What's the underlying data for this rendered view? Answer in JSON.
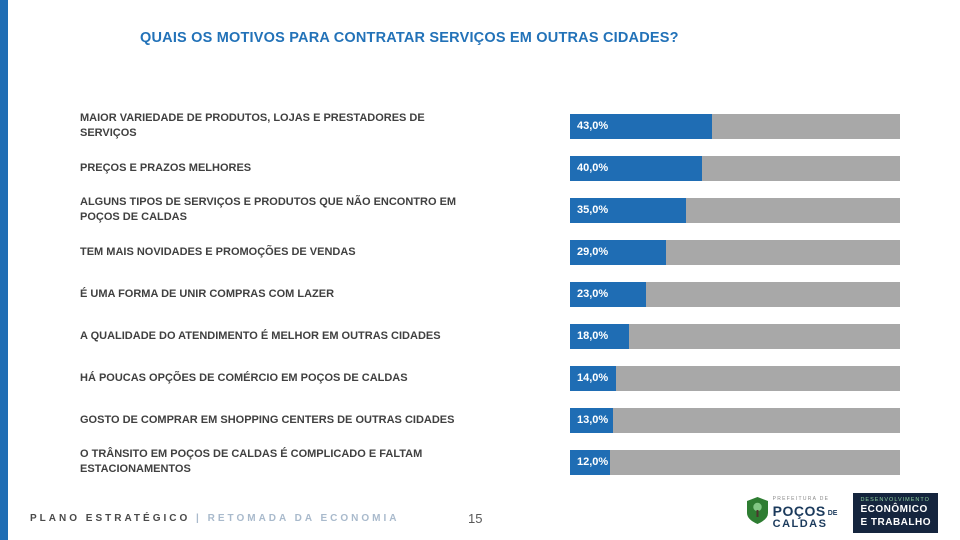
{
  "title": "QUAIS OS MOTIVOS PARA CONTRATAR SERVIÇOS EM OUTRAS CIDADES?",
  "colors": {
    "accent_blue": "#1F6DB4",
    "title_blue": "#2272B8",
    "bar_fill": "#1F6DB4",
    "bar_track_gray": "#A8A8A8",
    "label_gray": "#404040"
  },
  "chart_data": {
    "type": "bar",
    "orientation": "horizontal",
    "title": "QUAIS OS MOTIVOS PARA CONTRATAR SERVIÇOS EM OUTRAS CIDADES?",
    "categories": [
      "MAIOR VARIEDADE DE PRODUTOS, LOJAS E PRESTADORES DE SERVIÇOS",
      "PREÇOS E PRAZOS MELHORES",
      "ALGUNS TIPOS DE SERVIÇOS E PRODUTOS QUE NÃO ENCONTRO EM POÇOS DE CALDAS",
      "TEM MAIS NOVIDADES E PROMOÇÕES DE VENDAS",
      "É UMA FORMA DE UNIR COMPRAS COM LAZER",
      "A QUALIDADE DO ATENDIMENTO É MELHOR EM OUTRAS CIDADES",
      "HÁ POUCAS OPÇÕES DE COMÉRCIO EM POÇOS DE CALDAS",
      "GOSTO DE COMPRAR EM SHOPPING CENTERS DE OUTRAS CIDADES",
      "O TRÂNSITO EM POÇOS DE CALDAS É COMPLICADO E FALTAM ESTACIONAMENTOS"
    ],
    "values": [
      43,
      40,
      35,
      29,
      23,
      18,
      14,
      13,
      12
    ],
    "value_labels": [
      "43,0%",
      "40,0%",
      "35,0%",
      "29,0%",
      "23,0%",
      "18,0%",
      "14,0%",
      "13,0%",
      "12,0%"
    ],
    "xlim": [
      0,
      100
    ],
    "grid": false,
    "legend": false
  },
  "footer": {
    "program": "PLANO ESTRATÉGICO",
    "separator": "|",
    "subtitle": "RETOMADA DA ECONOMIA",
    "page_number": "15",
    "prefecture_logo": {
      "top": "PREFEITURA DE",
      "name1": "POÇOS",
      "de": "DE",
      "name2": "CALDAS"
    },
    "department_logo": {
      "line1": "DESENVOLVIMENTO",
      "line2": "ECONÔMICO",
      "line3": "E TRABALHO"
    }
  }
}
